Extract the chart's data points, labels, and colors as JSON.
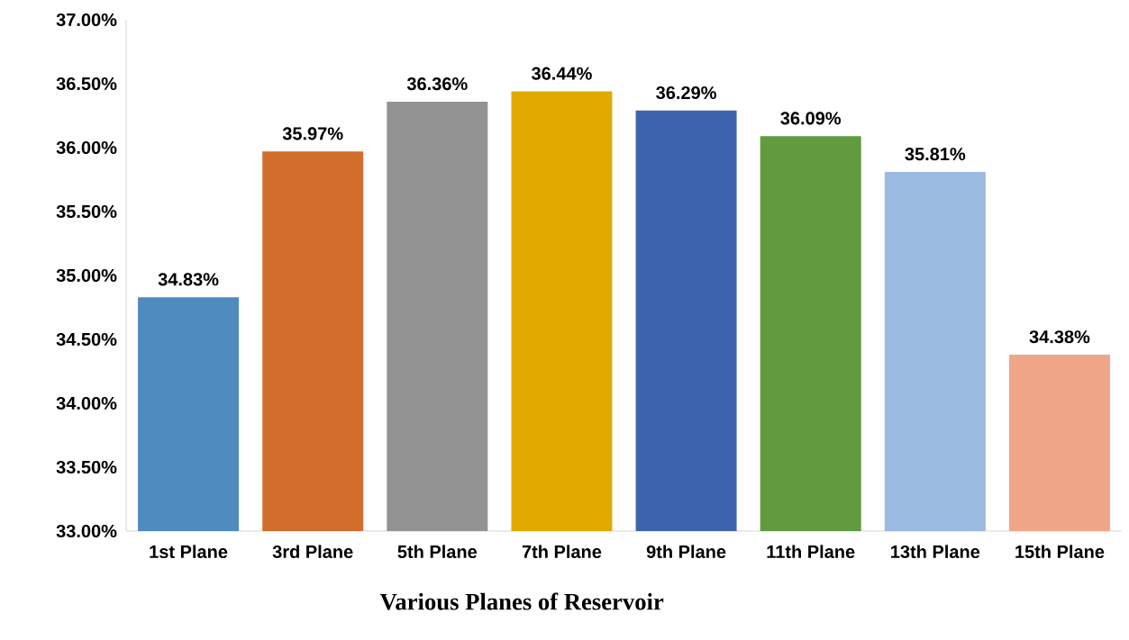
{
  "chart_data": {
    "type": "bar",
    "xlabel": "Various Planes of Reservoir",
    "categories": [
      "1st Plane",
      "3rd Plane",
      "5th Plane",
      "7th Plane",
      "9th Plane",
      "11th Plane",
      "13th Plane",
      "15th Plane"
    ],
    "values": [
      34.83,
      35.97,
      36.36,
      36.44,
      36.29,
      36.09,
      35.81,
      34.38
    ],
    "colors": [
      "#508bbf",
      "#d26e2c",
      "#939393",
      "#e2a900",
      "#3d65ad",
      "#629b3f",
      "#9bbae0",
      "#f0a688"
    ],
    "value_labels": [
      "34.83%",
      "35.97%",
      "36.36%",
      "36.44%",
      "36.29%",
      "36.09%",
      "35.81%",
      "34.38%"
    ],
    "ylim": [
      33,
      37
    ],
    "yticks": [
      {
        "value": 33,
        "label": "33.00%"
      },
      {
        "value": 33.5,
        "label": "33.50%"
      },
      {
        "value": 34,
        "label": "34.00%"
      },
      {
        "value": 34.5,
        "label": "34.50%"
      },
      {
        "value": 35,
        "label": "35.00%"
      },
      {
        "value": 35.5,
        "label": "35.50%"
      },
      {
        "value": 36,
        "label": "36.00%"
      },
      {
        "value": 36.5,
        "label": "36.50%"
      },
      {
        "value": 37,
        "label": "37.00%"
      }
    ],
    "grid": false
  }
}
